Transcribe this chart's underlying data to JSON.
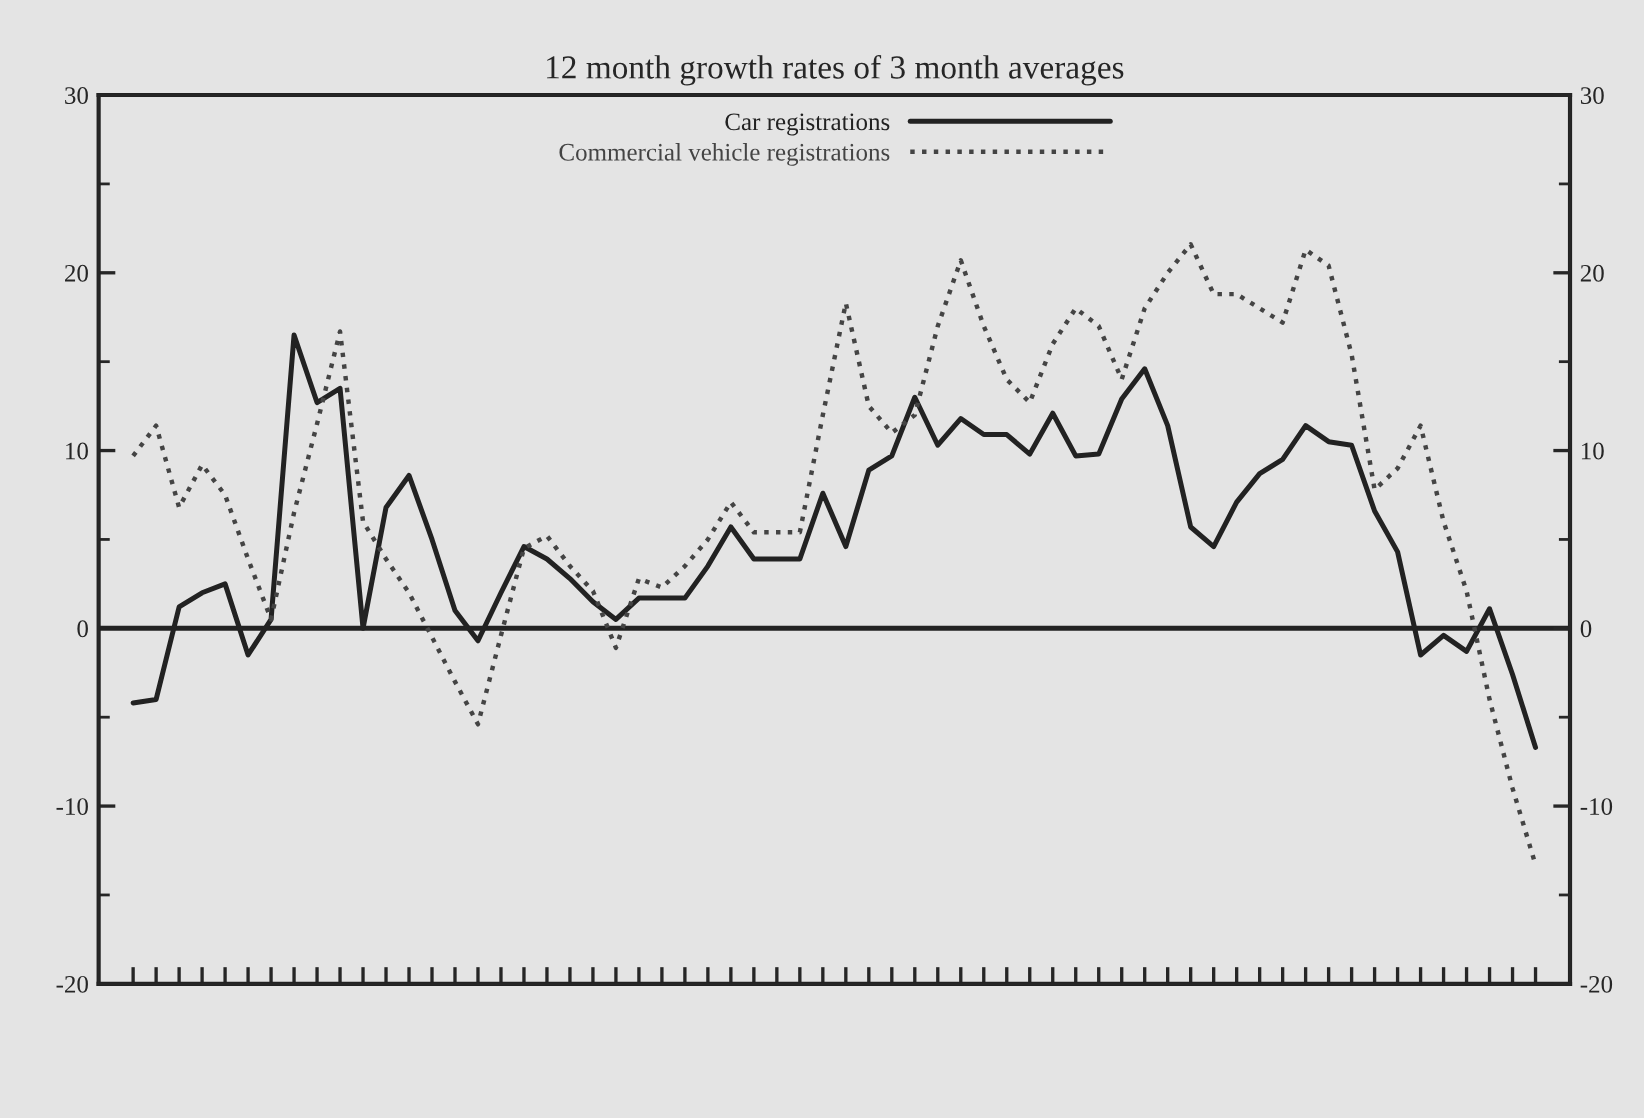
{
  "chart_data": {
    "type": "line",
    "title": "12 month growth rates of 3 month averages",
    "categories": [
      null,
      null,
      null,
      null,
      null,
      null,
      null,
      null,
      null,
      null,
      null,
      null,
      null,
      null,
      null,
      null,
      null,
      null,
      null,
      null,
      null,
      null,
      null,
      null,
      null,
      null,
      null,
      null,
      null,
      null,
      null,
      null,
      null,
      null,
      null,
      null,
      null,
      null,
      null,
      null,
      null,
      null,
      null,
      null,
      null,
      null,
      null,
      null,
      null,
      null,
      null,
      null,
      null,
      null,
      null,
      null,
      null,
      null,
      null,
      null,
      null,
      null
    ],
    "series": [
      {
        "name": "Car registrations",
        "color": "#222222",
        "line_style": "solid",
        "values": [
          -4.2,
          -4.0,
          1.2,
          2.0,
          2.5,
          -1.5,
          0.5,
          16.5,
          12.7,
          13.5,
          0,
          6.8,
          8.6,
          5,
          1,
          -0.7,
          2,
          4.6,
          3.9,
          2.8,
          1.5,
          0.5,
          1.7,
          1.7,
          1.7,
          3.5,
          5.7,
          3.9,
          3.9,
          3.9,
          7.6,
          4.6,
          8.9,
          9.7,
          13,
          10.3,
          11.8,
          10.9,
          10.9,
          9.8,
          12.1,
          9.7,
          9.8,
          12.9,
          14.6,
          11.4,
          5.7,
          4.6,
          7.1,
          8.7,
          9.5,
          11.4,
          10.5,
          10.3,
          6.6,
          4.3,
          -1.5,
          -0.4,
          -1.3,
          1.1,
          -2.6,
          -6.7
        ]
      },
      {
        "name": "Commercial vehicle registrations",
        "color": "#444444",
        "line_style": "dotted",
        "values": [
          9.7,
          11.4,
          6.8,
          9.2,
          7.5,
          3.9,
          0.5,
          6.5,
          11.5,
          16.7,
          6.0,
          3.9,
          2.0,
          -0.5,
          -3,
          -5.4,
          -0.4,
          4.5,
          5.2,
          3.5,
          2.1,
          -1.1,
          2.8,
          2.3,
          3.5,
          5,
          7.1,
          5.4,
          5.4,
          5.4,
          12,
          18.3,
          12.5,
          11,
          12,
          17,
          20.7,
          17,
          14,
          12.7,
          16,
          18,
          17,
          14,
          18,
          20,
          21.6,
          18.8,
          18.8,
          18,
          17.2,
          21.3,
          20.4,
          15.4,
          7.8,
          9,
          11.4,
          6,
          2.1,
          -4,
          -9,
          -13.3
        ]
      }
    ],
    "ylim": [
      -20,
      30
    ],
    "yticks": [
      -20,
      -10,
      0,
      10,
      20,
      30
    ],
    "y2lim": [
      -20,
      30
    ],
    "y2ticks": [
      -20,
      -10,
      0,
      10,
      20,
      30
    ],
    "ref_lines": [
      {
        "axis": "y",
        "value": 0,
        "color": "#222222"
      }
    ],
    "legend": "top",
    "grid": false,
    "marker": "none"
  }
}
